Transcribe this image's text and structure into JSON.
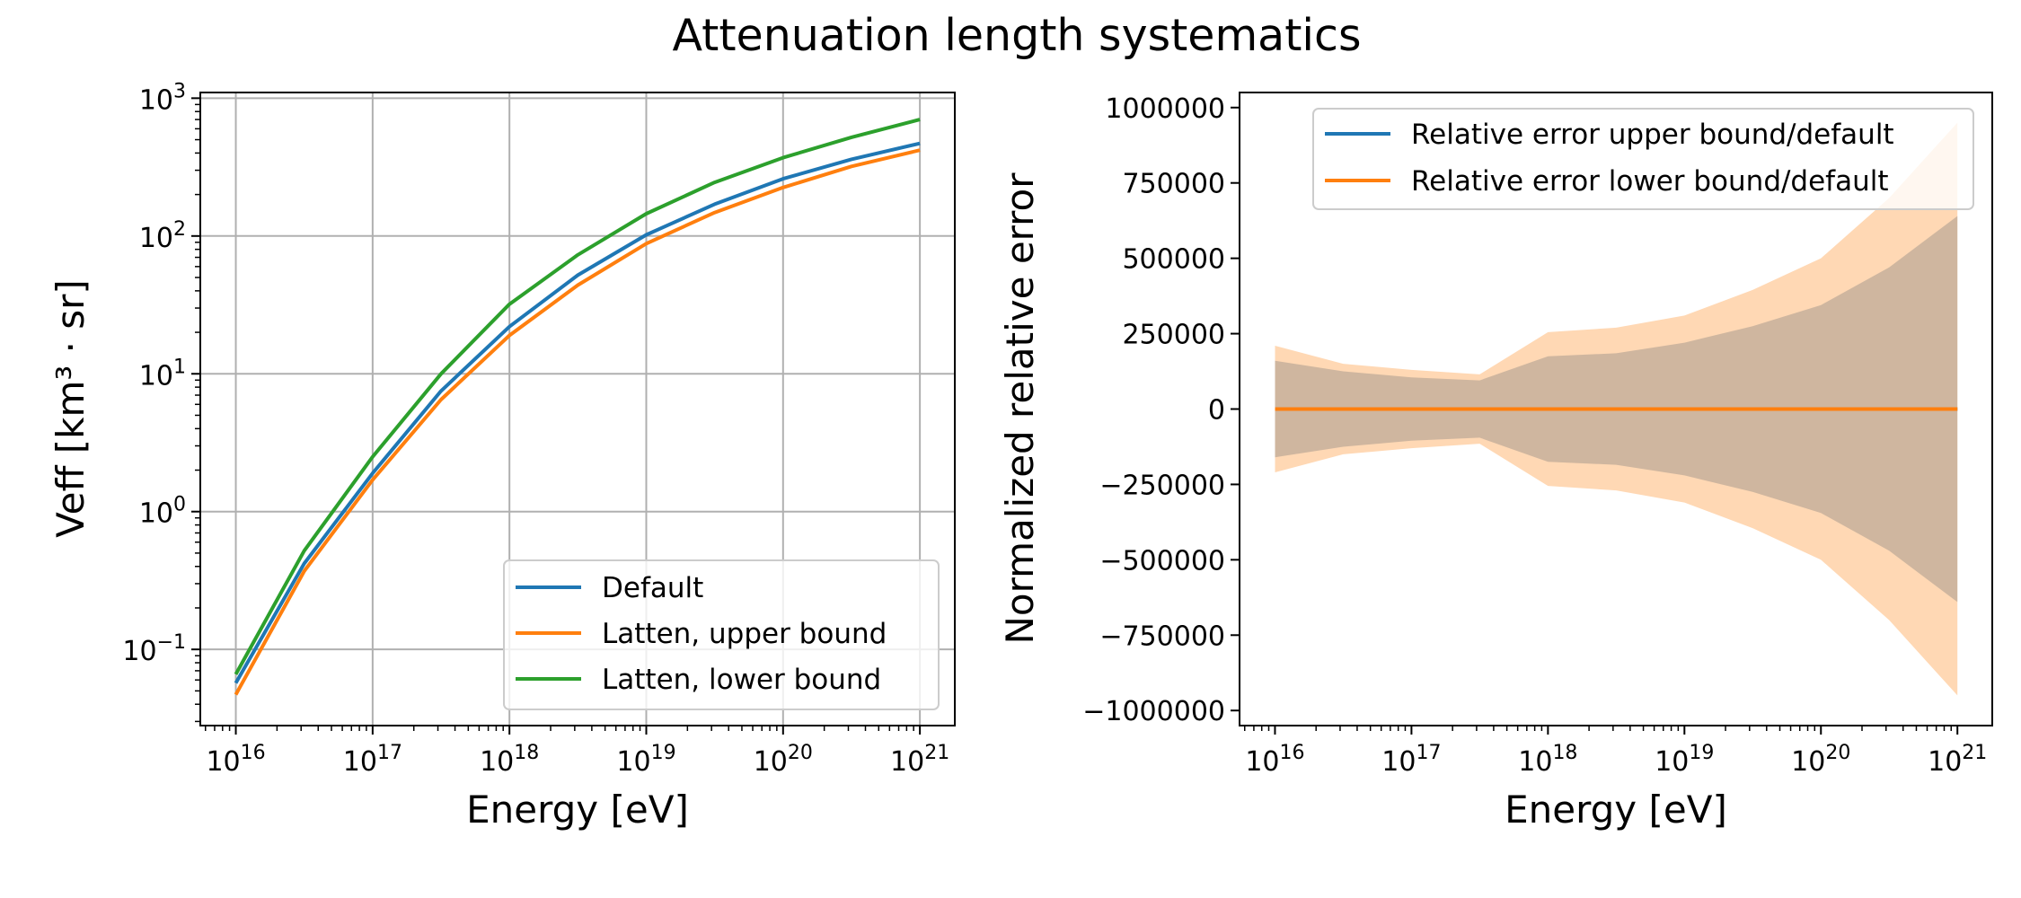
{
  "title": "Attenuation length systematics",
  "chart_data": [
    {
      "type": "line",
      "xscale": "log",
      "yscale": "log",
      "xlabel": "Energy [eV]",
      "ylabel": "Veff [km³ · sr]",
      "xlim": [
        5500000000000000.0,
        1.8e+21
      ],
      "ylim": [
        0.028,
        1100
      ],
      "xticks": [
        "10^16",
        "10^17",
        "10^18",
        "10^19",
        "10^20",
        "10^21"
      ],
      "yticks": [
        "10^-1",
        "10^0",
        "10^1",
        "10^2",
        "10^3"
      ],
      "grid": true,
      "legend_position": "lower right",
      "x": [
        1e+16,
        3.16e+16,
        1e+17,
        3.16e+17,
        1e+18,
        3.16e+18,
        1e+19,
        3.16e+19,
        1e+20,
        3.16e+20,
        1e+21
      ],
      "series": [
        {
          "name": "Default",
          "color": "#1f77b4",
          "values": [
            0.057,
            0.42,
            1.9,
            7.5,
            22,
            52,
            102,
            170,
            260,
            360,
            470
          ]
        },
        {
          "name": "Latten, upper bound",
          "color": "#ff7f0e",
          "values": [
            0.047,
            0.37,
            1.7,
            6.5,
            19,
            44,
            88,
            148,
            225,
            320,
            420
          ]
        },
        {
          "name": "Latten, lower bound",
          "color": "#2ca02c",
          "values": [
            0.066,
            0.52,
            2.5,
            10,
            32,
            73,
            145,
            245,
            370,
            520,
            700
          ]
        }
      ]
    },
    {
      "type": "area",
      "xscale": "log",
      "yscale": "linear",
      "xlabel": "Energy [eV]",
      "ylabel": "Normalized relative error",
      "xlim": [
        5500000000000000.0,
        1.8e+21
      ],
      "ylim": [
        -1050000,
        1050000
      ],
      "xticks": [
        "10^16",
        "10^17",
        "10^18",
        "10^19",
        "10^20",
        "10^21"
      ],
      "yticks": [
        "1000000",
        "750000",
        "500000",
        "250000",
        "0",
        "−250000",
        "−500000",
        "−750000",
        "−1000000"
      ],
      "grid": false,
      "legend_position": "upper right",
      "x": [
        1e+16,
        3.16e+16,
        1e+17,
        3.16e+17,
        1e+18,
        3.16e+18,
        1e+19,
        3.16e+19,
        1e+20,
        3.16e+20,
        1e+21
      ],
      "series": [
        {
          "name": "Relative error upper bound/default",
          "color": "#1f77b4",
          "values": [
            0,
            0,
            0,
            0,
            0,
            0,
            0,
            0,
            0,
            0,
            0
          ],
          "band": [
            160000,
            125000,
            105000,
            95000,
            175000,
            185000,
            220000,
            275000,
            345000,
            470000,
            640000
          ]
        },
        {
          "name": "Relative error lower bound/default",
          "color": "#ff7f0e",
          "values": [
            0,
            0,
            0,
            0,
            0,
            0,
            0,
            0,
            0,
            0,
            0
          ],
          "band": [
            210000,
            150000,
            130000,
            115000,
            255000,
            270000,
            310000,
            395000,
            500000,
            700000,
            950000
          ]
        }
      ]
    }
  ]
}
